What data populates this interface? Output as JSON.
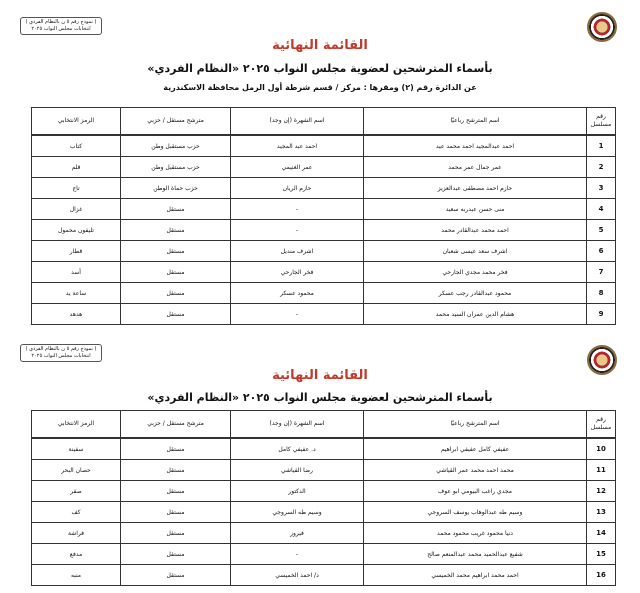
{
  "form_box": {
    "line1": "( نموذج رقم ٥ ن بالنظام الفردي )",
    "line2": "انتخابات مجلس النواب ٢٠٢٥"
  },
  "title": "القائمة النهائية",
  "subtitle": "بأسماء المترشحين لعضوية مجلس النواب ٢٠٢٥ «النظام الفردي»",
  "district_line": "عن الدائرة رقم (٢)   ومقرها : مركز / قسم شرطة  أول الرمل   محافظة  الاسكندرية",
  "headers": {
    "num": "رقم مسلسل",
    "name": "اسم المترشح رباعيًا",
    "nickname": "اسم الشهرة (إن وجد)",
    "type": "مترشح مستقل / حزبي",
    "symbol": "الرمز الانتخابي"
  },
  "table1": [
    {
      "num": "1",
      "name": "احمد عبدالمجيد احمد محمد عيد",
      "nickname": "احمد عبد المجيد",
      "type": "حزب مستقبل وطن",
      "symbol": "كتاب"
    },
    {
      "num": "2",
      "name": "عمر جمال عمر محمد",
      "nickname": "عمر الغنيمي",
      "type": "حزب مستقبل وطن",
      "symbol": "قلم"
    },
    {
      "num": "3",
      "name": "حازم احمد مصطفى عبدالعزيز",
      "nickname": "حازم الريان",
      "type": "حزب حماة الوطن",
      "symbol": "تاج"
    },
    {
      "num": "4",
      "name": "منى حسن عبدربه سعيد",
      "nickname": "-",
      "type": "مستقل",
      "symbol": "غزال"
    },
    {
      "num": "5",
      "name": "احمد محمد عبدالقادر محمد",
      "nickname": "-",
      "type": "مستقل",
      "symbol": "تليفون محمول"
    },
    {
      "num": "6",
      "name": "اشرف سعد عيسى شعبان",
      "nickname": "اشرف منديل",
      "type": "مستقل",
      "symbol": "قطار"
    },
    {
      "num": "7",
      "name": "فخر محمد مجدي الجارحي",
      "nickname": "فخر الجارحي",
      "type": "مستقل",
      "symbol": "أسد"
    },
    {
      "num": "8",
      "name": "محمود عبدالقادر رجب عسكر",
      "nickname": "محمود عسكر",
      "type": "مستقل",
      "symbol": "ساعة يد"
    },
    {
      "num": "9",
      "name": "هشام الدين عمران السيد محمد",
      "nickname": "-",
      "type": "مستقل",
      "symbol": "هدهد"
    }
  ],
  "table2": [
    {
      "num": "10",
      "name": "عفيفي كامل عفيفي ابراهيم",
      "nickname": "د. عفيفي كامل",
      "type": "مستقل",
      "symbol": "سفينة"
    },
    {
      "num": "11",
      "name": "محمد احمد محمد عمر القياشي",
      "nickname": "رضا القياشي",
      "type": "مستقل",
      "symbol": "حصان البحر"
    },
    {
      "num": "12",
      "name": "مجدي راغب البيومي ابو عوف",
      "nickname": "الدكتور",
      "type": "مستقل",
      "symbol": "صقر"
    },
    {
      "num": "13",
      "name": "وسيم طه عبدالوهاب يوسف السروجي",
      "nickname": "وسيم طه السروجي",
      "type": "مستقل",
      "symbol": "كف"
    },
    {
      "num": "14",
      "name": "دنيا محمود غريب محمود محمد",
      "nickname": "فيروز",
      "type": "مستقل",
      "symbol": "فراشة"
    },
    {
      "num": "15",
      "name": "شفيع عبدالحميد محمد عبدالمنعم صالح",
      "nickname": "-",
      "type": "مستقل",
      "symbol": "مدفع"
    },
    {
      "num": "16",
      "name": "احمد محمد ابراهيم محمد الخميسي",
      "nickname": "د/ احمد الخميسي",
      "type": "مستقل",
      "symbol": "منبه"
    }
  ],
  "colors": {
    "title": "#c0392b"
  }
}
